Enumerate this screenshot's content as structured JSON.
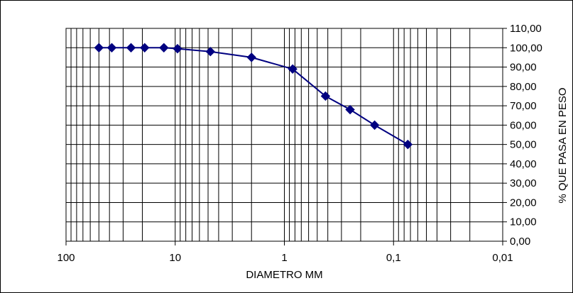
{
  "chart_data": {
    "type": "line",
    "title": "",
    "xlabel": "DIAMETRO MM",
    "ylabel": "% QUE PASA EN PESO",
    "x_scale": "log",
    "x_reversed": true,
    "xlim": [
      100,
      0.01
    ],
    "ylim": [
      0,
      110
    ],
    "grid": true,
    "legend": "none",
    "x_tick_labels": [
      "100",
      "10",
      "1",
      "0,1",
      "0,01"
    ],
    "x_tick_values": [
      100,
      10,
      1,
      0.1,
      0.01
    ],
    "y_tick_labels": [
      "0,00",
      "10,00",
      "20,00",
      "30,00",
      "40,00",
      "50,00",
      "60,00",
      "70,00",
      "80,00",
      "90,00",
      "100,00",
      "110,00"
    ],
    "y_tick_values": [
      0,
      10,
      20,
      30,
      40,
      50,
      60,
      70,
      80,
      90,
      100,
      110
    ],
    "series": [
      {
        "x": [
          50,
          38.1,
          25.4,
          19.05,
          12.7,
          9.525,
          4.76,
          2,
          0.84,
          0.42,
          0.25,
          0.149,
          0.074
        ],
        "y": [
          100,
          100,
          100,
          100,
          100,
          99.5,
          98,
          95,
          89,
          75,
          68,
          60,
          50
        ]
      }
    ],
    "colors": {
      "series": "#000080",
      "grid": "#000000"
    }
  }
}
